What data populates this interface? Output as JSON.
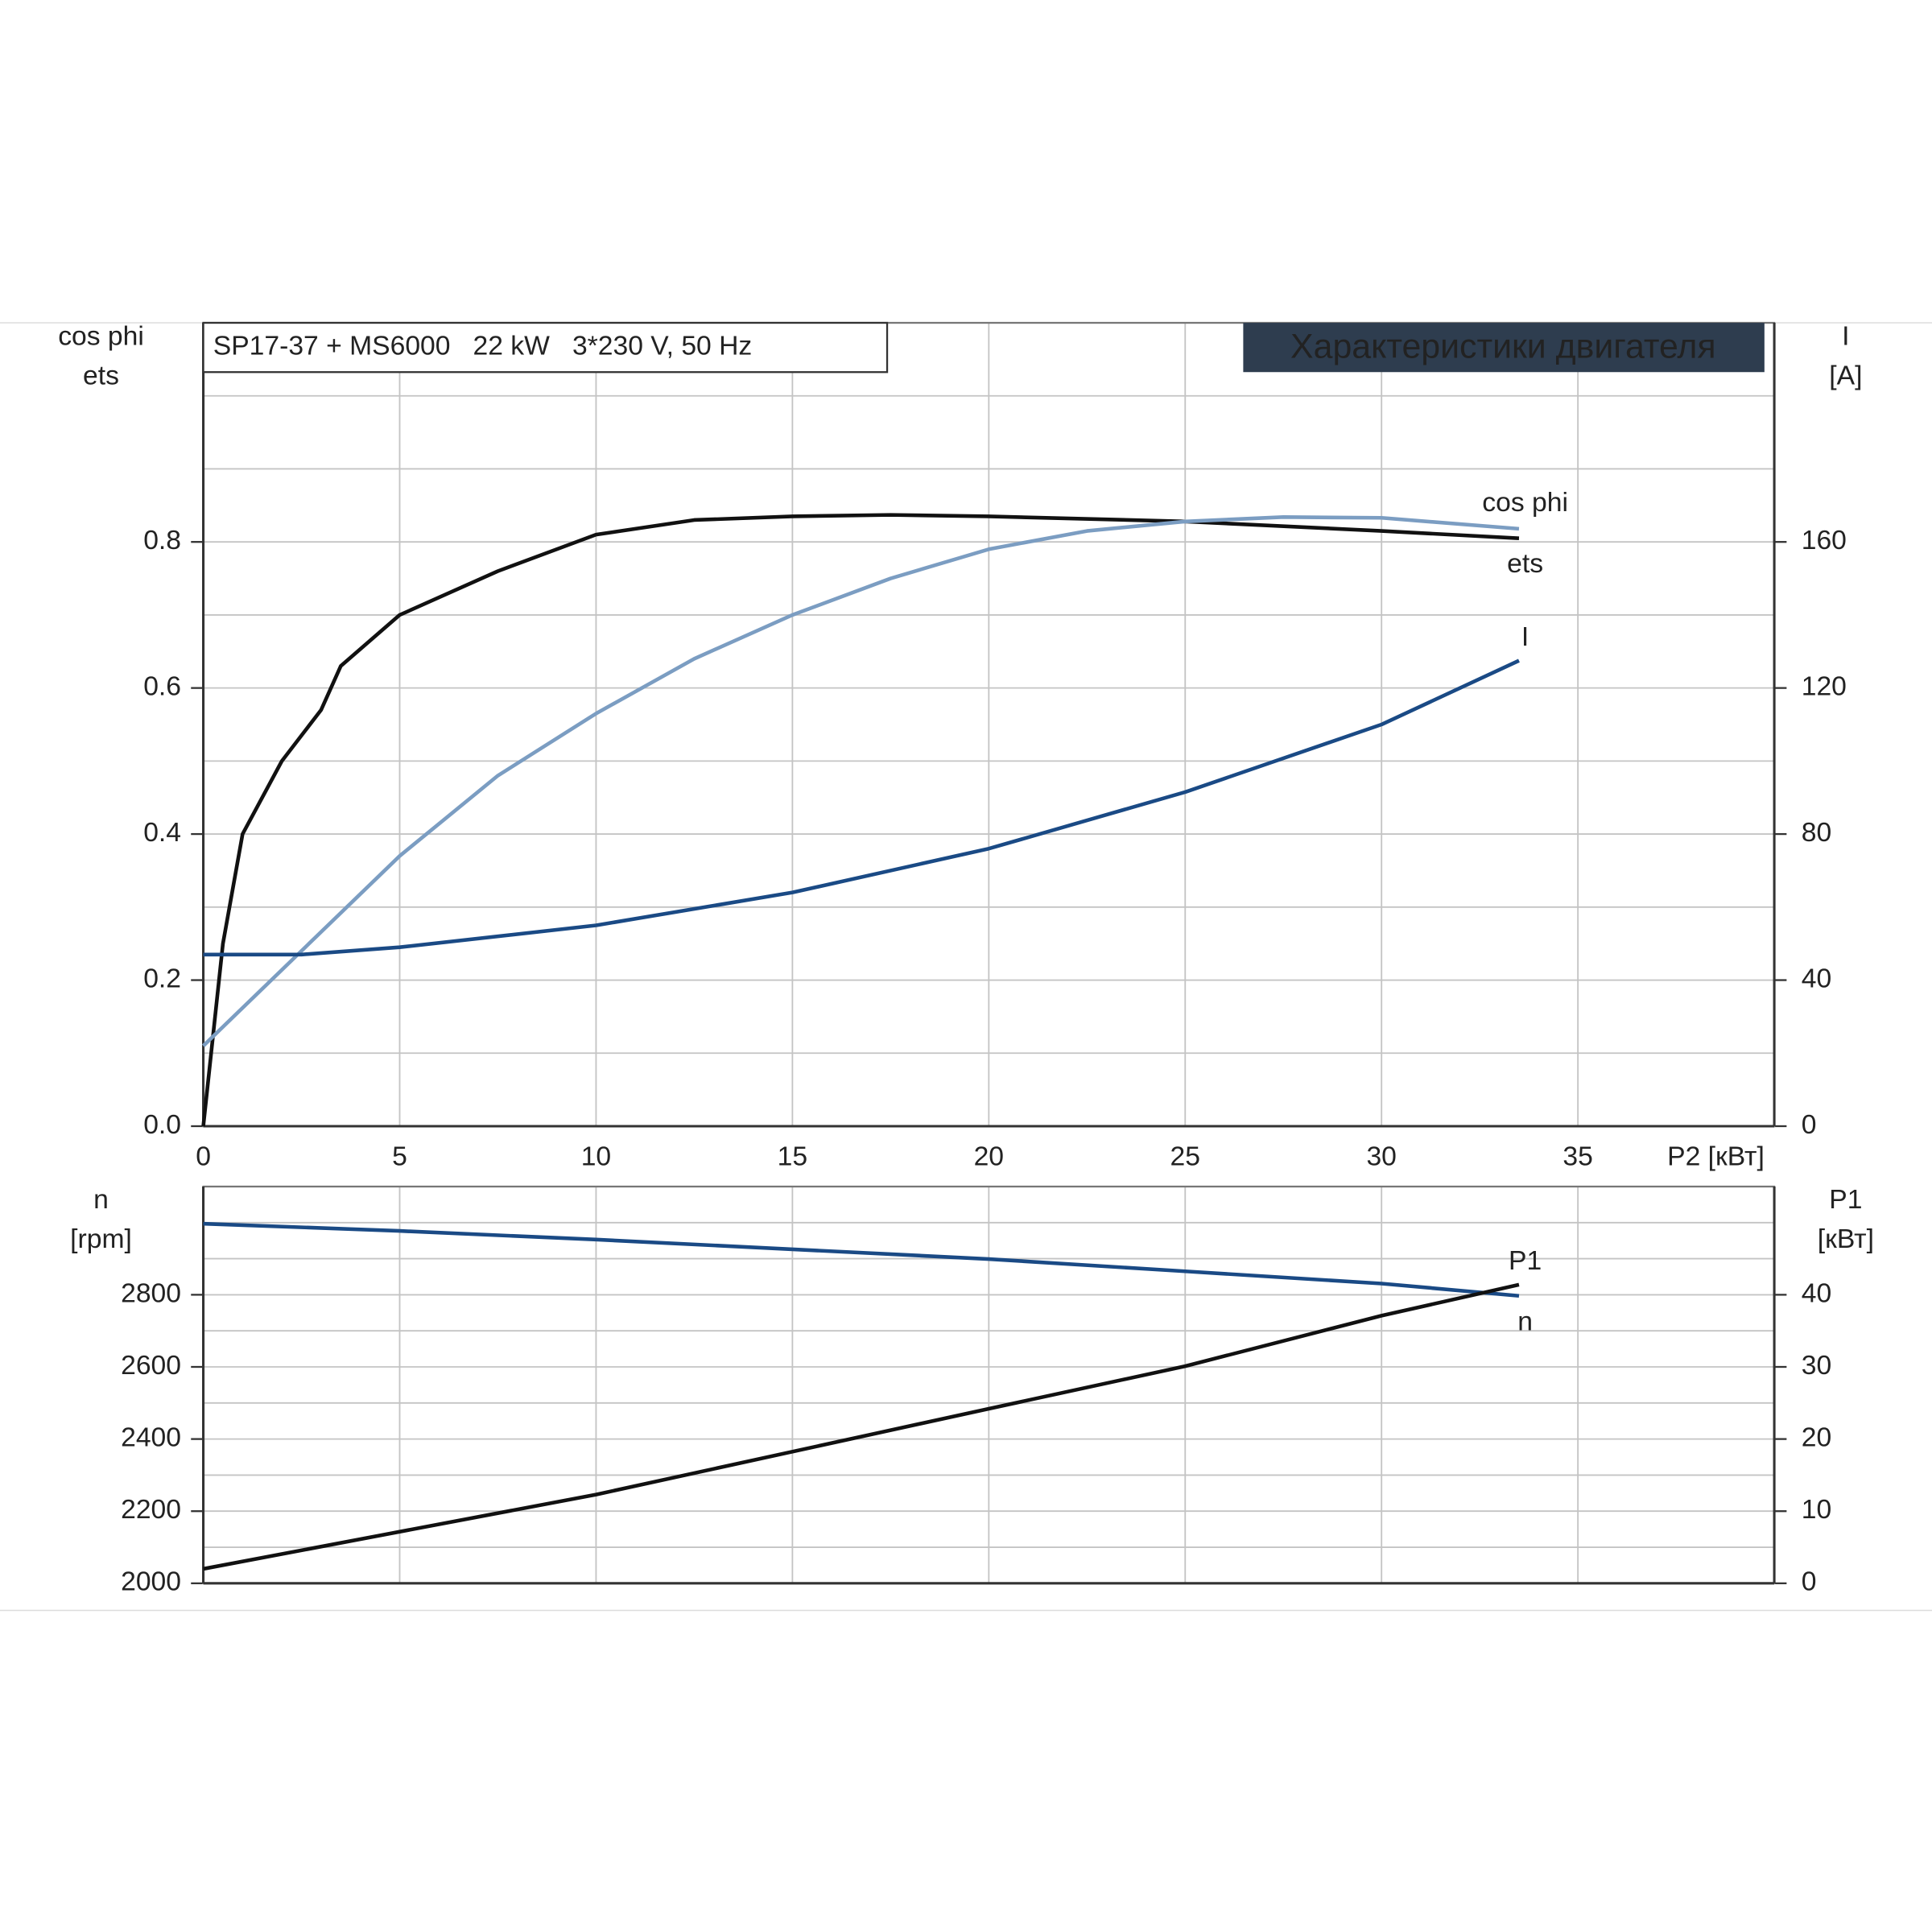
{
  "chart_data": [
    {
      "type": "line",
      "title": "Характеристики двигателя",
      "subtitle": "SP17-37 + MS6000   22 kW   3*230 V, 50 Hz",
      "ylabel": [
        "cos phi",
        "ets"
      ],
      "y2label": [
        "I",
        "[A]"
      ],
      "xlabel": "P2 [кВт]",
      "xlim": [
        0,
        40
      ],
      "xticks": [
        0,
        5,
        10,
        15,
        20,
        25,
        30,
        35
      ],
      "ylim": [
        0,
        1.1
      ],
      "yticks": [
        {
          "value": 0,
          "label": "0.0"
        },
        0.2,
        0.4,
        0.6,
        0.8
      ],
      "y2lim": [
        0,
        220
      ],
      "y2ticks": [
        0,
        40,
        80,
        120,
        160
      ],
      "grid": true,
      "series": [
        {
          "name": "ets",
          "color": "#111111",
          "axis": "y",
          "x": [
            0,
            0.5,
            1,
            2,
            3,
            3.5,
            5,
            7.5,
            10,
            12.5,
            15,
            17.5,
            20,
            25,
            30,
            33.5
          ],
          "values": [
            0,
            0.25,
            0.4,
            0.5,
            0.57,
            0.63,
            0.7,
            0.76,
            0.81,
            0.83,
            0.835,
            0.837,
            0.835,
            0.828,
            0.815,
            0.805
          ]
        },
        {
          "name": "cos phi",
          "color": "#7b9dc2",
          "axis": "y",
          "x": [
            0,
            2.5,
            5,
            7.5,
            10,
            12.5,
            15,
            17.5,
            20,
            22.5,
            25,
            27.5,
            30,
            33.5
          ],
          "values": [
            0.11,
            0.24,
            0.37,
            0.48,
            0.565,
            0.64,
            0.7,
            0.75,
            0.79,
            0.815,
            0.828,
            0.834,
            0.833,
            0.818
          ]
        },
        {
          "name": "I",
          "color": "#1a4a85",
          "axis": "y2",
          "x": [
            0,
            2.5,
            5,
            10,
            15,
            20,
            25,
            30,
            33.5
          ],
          "values": [
            47,
            47,
            49,
            55,
            64,
            76,
            91.5,
            110,
            127.5
          ]
        }
      ]
    },
    {
      "type": "line",
      "ylabel": [
        "n",
        "[rpm]"
      ],
      "y2label": [
        "P1",
        "[кВт]"
      ],
      "xlim": [
        0,
        40
      ],
      "xticks": [
        0,
        5,
        10,
        15,
        20,
        25,
        30,
        35
      ],
      "xtick_labels": false,
      "ylim": [
        2000,
        3100
      ],
      "yticks": [
        2000,
        2200,
        2400,
        2600,
        2800
      ],
      "y2lim": [
        0,
        55
      ],
      "y2ticks": [
        0,
        10,
        20,
        30,
        40
      ],
      "grid": true,
      "series": [
        {
          "name": "n",
          "color": "#1a4a85",
          "axis": "y",
          "x": [
            0,
            5,
            10,
            15,
            20,
            25,
            30,
            33.5
          ],
          "values": [
            2997,
            2977,
            2953,
            2926,
            2899,
            2865,
            2831,
            2797
          ]
        },
        {
          "name": "P1",
          "color": "#111111",
          "axis": "y2",
          "x": [
            0,
            10,
            20,
            25,
            30,
            33.5
          ],
          "values": [
            2.0,
            12.3,
            24.2,
            30.1,
            37.1,
            41.4
          ]
        }
      ]
    }
  ]
}
